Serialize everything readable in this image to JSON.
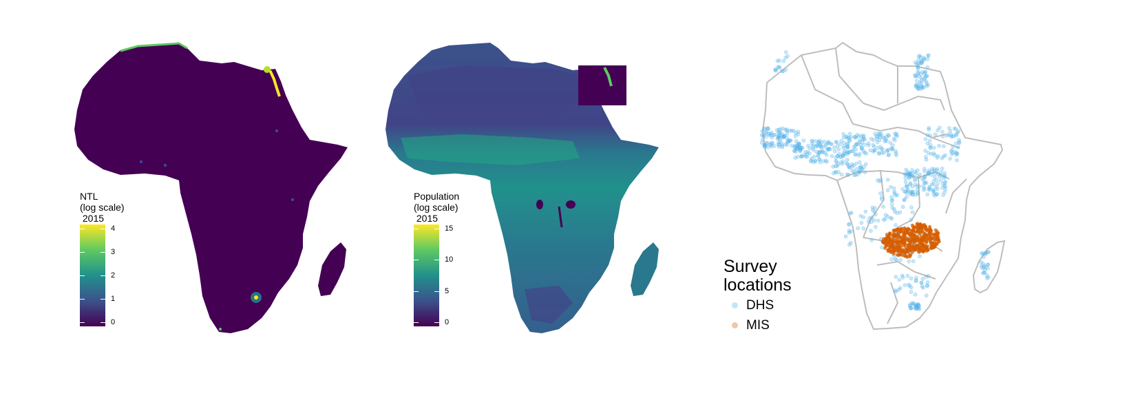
{
  "panels": {
    "ntl": {
      "legend_title": "NTL\n(log scale)\n 2015",
      "ticks": [
        "0",
        "1",
        "2",
        "3",
        "4"
      ],
      "colors": [
        "#440154",
        "#3b528b",
        "#21918c",
        "#5ec962",
        "#fde725"
      ]
    },
    "population": {
      "legend_title": "Population\n(log scale)\n 2015",
      "ticks": [
        "0",
        "5",
        "10",
        "15"
      ],
      "colors": [
        "#440154",
        "#3b528b",
        "#21918c",
        "#5ec962",
        "#fde725"
      ]
    },
    "survey": {
      "legend_title": "Survey\nlocations",
      "items": [
        {
          "label": "DHS",
          "color": "#56B4E9"
        },
        {
          "label": "MIS",
          "color": "#D55E00"
        }
      ],
      "border_color": "#bdbdbd"
    }
  }
}
